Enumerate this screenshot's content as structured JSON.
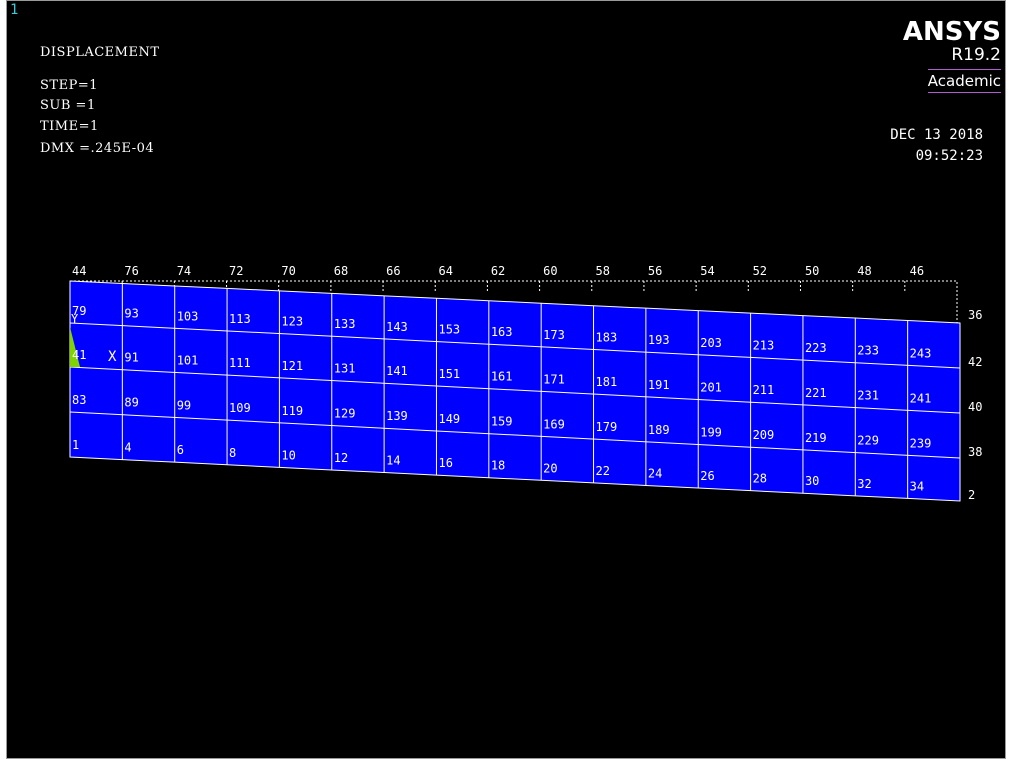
{
  "window": {
    "number": "1"
  },
  "info": {
    "title": "DISPLACEMENT",
    "step": "STEP=1",
    "sub": "SUB =1",
    "time": "TIME=1",
    "dmx": "DMX =.245E-04"
  },
  "logo": {
    "name": "ANSYS",
    "version": "R19.2",
    "edition": "Academic"
  },
  "datetime": {
    "date": "DEC 13 2018",
    "time": "09:52:23"
  },
  "axis": {
    "y": "Y",
    "x": "X"
  },
  "colors": {
    "background": "#000000",
    "mesh_fill": "#0000ff",
    "mesh_lines": "#ffffff",
    "constraint": "#7fd400"
  },
  "mesh": {
    "top_node_labels": [
      "44",
      "76",
      "74",
      "72",
      "70",
      "68",
      "66",
      "64",
      "62",
      "60",
      "58",
      "56",
      "54",
      "52",
      "50",
      "48",
      "46",
      "36"
    ],
    "row_labels": [
      [
        "79",
        "93",
        "103",
        "113",
        "123",
        "133",
        "143",
        "153",
        "163",
        "173",
        "183",
        "193",
        "203",
        "213",
        "223",
        "233",
        "243",
        "42"
      ],
      [
        "41",
        "91",
        "101",
        "111",
        "121",
        "131",
        "141",
        "151",
        "161",
        "171",
        "181",
        "191",
        "201",
        "211",
        "221",
        "231",
        "241",
        "40"
      ],
      [
        "83",
        "89",
        "99",
        "109",
        "119",
        "129",
        "139",
        "149",
        "159",
        "169",
        "179",
        "189",
        "199",
        "209",
        "219",
        "229",
        "239",
        "38"
      ],
      [
        "1",
        "4",
        "6",
        "8",
        "10",
        "12",
        "14",
        "16",
        "18",
        "20",
        "22",
        "24",
        "26",
        "28",
        "30",
        "32",
        "34",
        "2"
      ]
    ]
  }
}
